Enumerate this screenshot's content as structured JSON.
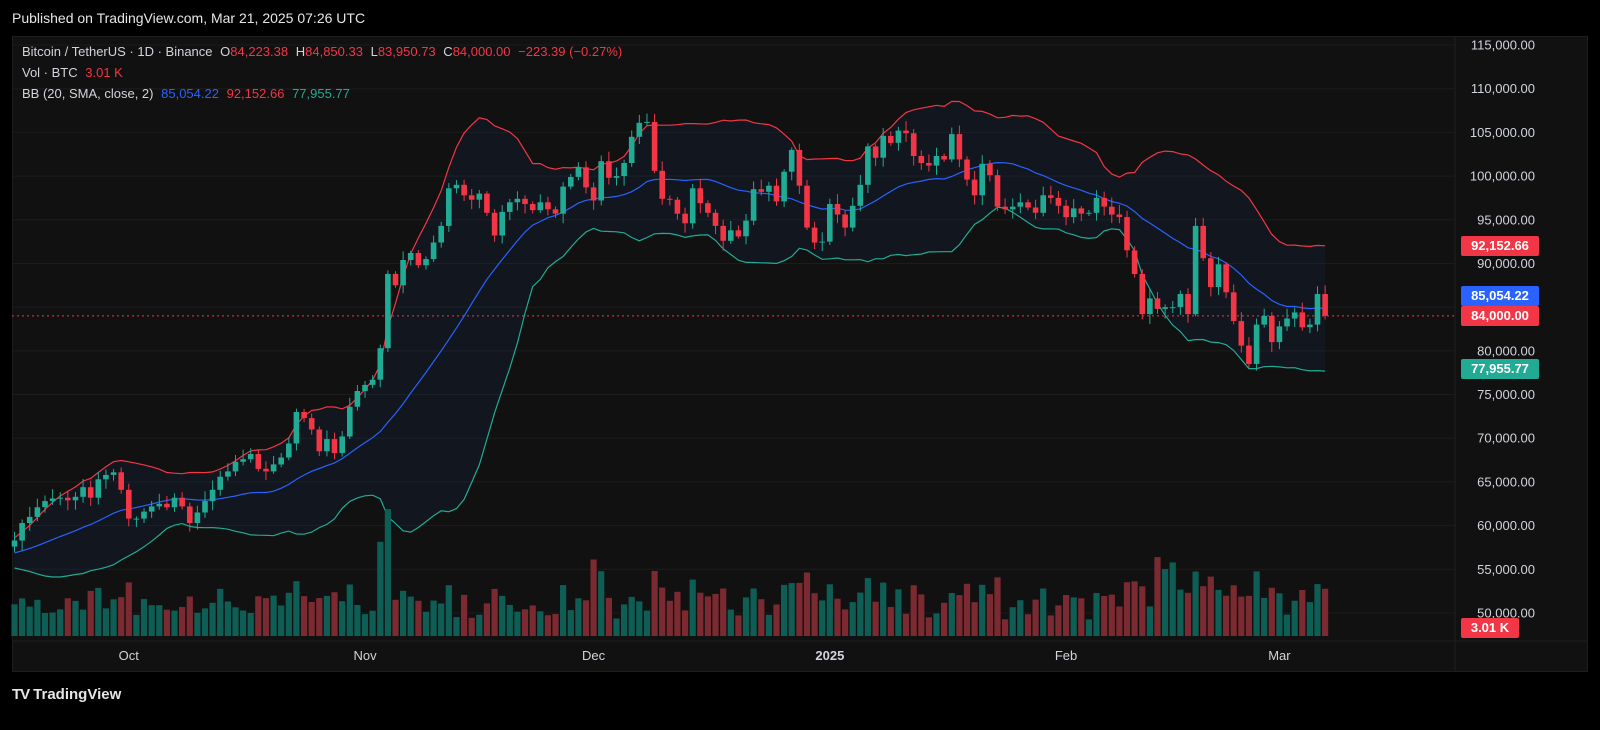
{
  "header": {
    "published": "Published on TradingView.com, Mar 21, 2025 07:26 UTC"
  },
  "legend": {
    "symbol": "Bitcoin / TetherUS · 1D · Binance",
    "o_label": "O",
    "o_value": "84,223.38",
    "h_label": "H",
    "h_value": "84,850.33",
    "l_label": "L",
    "l_value": "83,950.73",
    "c_label": "C",
    "c_value": "84,000.00",
    "change": "−223.39 (−0.27%)",
    "vol_label": "Vol · BTC",
    "vol_value": "3.01 K",
    "bb_label": "BB (20, SMA, close, 2)",
    "bb_basis": "85,054.22",
    "bb_upper": "92,152.66",
    "bb_lower": "77,955.77"
  },
  "price_tags": {
    "upper": "92,152.66",
    "basis": "85,054.22",
    "last": "84,000.00",
    "lower": "77,955.77",
    "volume": "3.01 K"
  },
  "footer": {
    "brand": "TradingView",
    "brand_mark": "TV"
  },
  "colors": {
    "up": "#22ab94",
    "down": "#f23645",
    "basis": "#2962ff",
    "band_upper": "#f23645",
    "band_lower": "#22ab94",
    "volume_up": "#0f5e55",
    "volume_down": "#7a2a30"
  },
  "chart_data": {
    "type": "candlestick",
    "title": "Bitcoin / TetherUS · 1D · Binance",
    "y_axis_labels": [
      "115,000.00",
      "110,000.00",
      "105,000.00",
      "100,000.00",
      "95,000.00",
      "90,000.00",
      "85,000.00",
      "80,000.00",
      "75,000.00",
      "70,000.00",
      "65,000.00",
      "60,000.00",
      "55,000.00",
      "50,000.00"
    ],
    "y_axis_values": [
      115000,
      110000,
      105000,
      100000,
      95000,
      90000,
      85000,
      80000,
      75000,
      70000,
      65000,
      60000,
      55000,
      50000
    ],
    "ylim": [
      47200,
      116000
    ],
    "x_axis_labels": [
      {
        "label": "Oct",
        "index": 15
      },
      {
        "label": "Nov",
        "index": 46
      },
      {
        "label": "Dec",
        "index": 76
      },
      {
        "label": "2025",
        "index": 107
      },
      {
        "label": "Feb",
        "index": 138
      },
      {
        "label": "Mar",
        "index": 166
      }
    ],
    "last_price": 84000,
    "close": [
      58300,
      60300,
      61000,
      62100,
      62800,
      63100,
      63200,
      62900,
      63300,
      64400,
      63200,
      65300,
      65800,
      66100,
      64100,
      60800,
      60800,
      61600,
      62200,
      62500,
      62100,
      63200,
      62200,
      60300,
      61500,
      62800,
      64100,
      65600,
      66200,
      67300,
      67600,
      68200,
      66500,
      66200,
      67000,
      67800,
      69400,
      73000,
      72300,
      71000,
      68500,
      69900,
      68300,
      70200,
      73600,
      75400,
      76100,
      76700,
      80300,
      88800,
      87500,
      90400,
      91200,
      89800,
      90500,
      92400,
      94300,
      98600,
      99000,
      97800,
      97300,
      98000,
      95800,
      93200,
      95900,
      97000,
      97400,
      96800,
      96100,
      97000,
      96200,
      95700,
      98800,
      99900,
      101000,
      98700,
      97200,
      101700,
      99800,
      100000,
      101500,
      104500,
      106100,
      106200,
      100600,
      97400,
      97300,
      95700,
      94600,
      98600,
      96900,
      95800,
      94300,
      92600,
      93800,
      93100,
      94900,
      98500,
      98200,
      98900,
      97100,
      100500,
      103000,
      98900,
      94100,
      92400,
      92500,
      96800,
      95600,
      94100,
      96600,
      99000,
      103400,
      102100,
      104600,
      103800,
      105200,
      104900,
      102300,
      101500,
      101200,
      102300,
      101900,
      104800,
      101900,
      99600,
      97800,
      101400,
      100100,
      96500,
      96200,
      96500,
      97000,
      96400,
      95800,
      97800,
      97500,
      96600,
      95300,
      96300,
      95700,
      95800,
      97500,
      96500,
      95600,
      95300,
      91500,
      88800,
      84200,
      86000,
      84800,
      85000,
      85000,
      86500,
      84200,
      94300,
      90600,
      87300,
      89900,
      86700,
      83400,
      80600,
      78500,
      83000,
      84000,
      81000,
      82800,
      83700,
      84400,
      82700,
      83000,
      86500,
      84000
    ]
  }
}
